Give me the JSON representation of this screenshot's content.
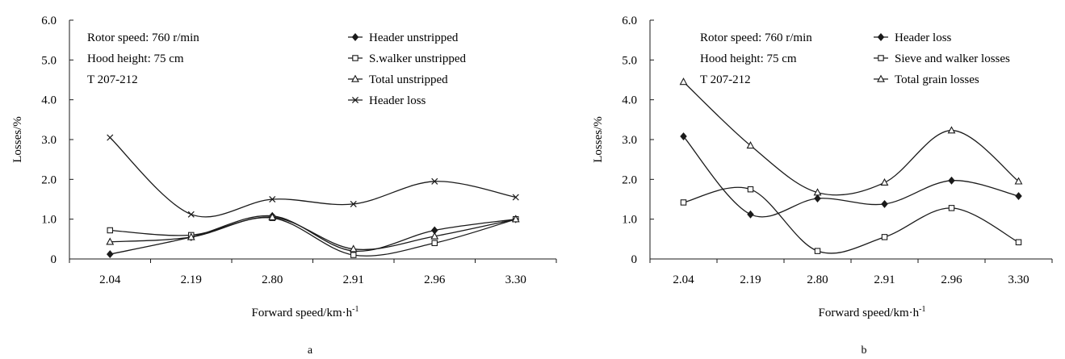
{
  "colors": {
    "line": "#1a1a1a",
    "marker_fill": "#ffffff",
    "marker_solid": "#1a1a1a",
    "background": "#ffffff"
  },
  "chart_data": [
    {
      "type": "line",
      "panel_label": "a",
      "categories": [
        "2.04",
        "2.19",
        "2.80",
        "2.91",
        "2.96",
        "3.30"
      ],
      "xlabel": "Forward speed/km·h",
      "xlabel_sup": "-1",
      "ylabel": "Losses/%",
      "ylim": [
        0,
        6
      ],
      "yticks": [
        "0",
        "1.0",
        "2.0",
        "3.0",
        "4.0",
        "5.0",
        "6.0"
      ],
      "grid": false,
      "smooth": true,
      "annotations": [
        "Rotor speed: 760 r/min",
        "Hood height: 75 cm",
        "T 207-212"
      ],
      "legend_position": "top-right",
      "series": [
        {
          "name": "Header unstripped",
          "marker": "diamond",
          "values": [
            0.12,
            0.55,
            1.08,
            0.2,
            0.72,
            1.0
          ]
        },
        {
          "name": "S.walker unstripped",
          "marker": "square",
          "values": [
            0.72,
            0.6,
            1.03,
            0.1,
            0.4,
            1.0
          ]
        },
        {
          "name": "Total unstripped",
          "marker": "triangle",
          "values": [
            0.43,
            0.55,
            1.05,
            0.25,
            0.57,
            1.0
          ]
        },
        {
          "name": "Header loss",
          "marker": "x",
          "values": [
            3.05,
            1.12,
            1.5,
            1.38,
            1.95,
            1.55
          ]
        }
      ]
    },
    {
      "type": "line",
      "panel_label": "b",
      "categories": [
        "2.04",
        "2.19",
        "2.80",
        "2.91",
        "2.96",
        "3.30"
      ],
      "xlabel": "Forward speed/km·h",
      "xlabel_sup": "-1",
      "ylabel": "Losses/%",
      "ylim": [
        0,
        6
      ],
      "yticks": [
        "0",
        "1.0",
        "2.0",
        "3.0",
        "4.0",
        "5.0",
        "6.0"
      ],
      "grid": false,
      "smooth": true,
      "annotations": [
        "Rotor speed: 760 r/min",
        "Hood height: 75 cm",
        "T 207-212"
      ],
      "legend_position": "top-right",
      "series": [
        {
          "name": "Header loss",
          "marker": "diamond",
          "values": [
            3.08,
            1.12,
            1.52,
            1.38,
            1.97,
            1.58
          ]
        },
        {
          "name": "Sieve and walker losses",
          "marker": "square",
          "values": [
            1.42,
            1.75,
            0.2,
            0.55,
            1.28,
            0.42
          ]
        },
        {
          "name": "Total grain losses",
          "marker": "triangle",
          "values": [
            4.45,
            2.85,
            1.67,
            1.92,
            3.23,
            1.95
          ]
        }
      ]
    }
  ]
}
